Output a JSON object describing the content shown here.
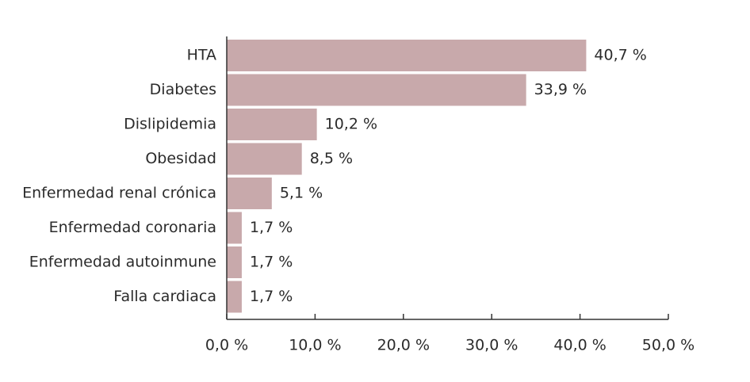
{
  "chart_data": {
    "type": "bar",
    "orientation": "horizontal",
    "categories": [
      "HTA",
      "Diabetes",
      "Dislipidemia",
      "Obesidad",
      "Enfermedad renal crónica",
      "Enfermedad coronaria",
      "Enfermedad autoinmune",
      "Falla cardiaca"
    ],
    "values": [
      40.7,
      33.9,
      10.2,
      8.5,
      5.1,
      1.7,
      1.7,
      1.7
    ],
    "value_labels": [
      "40,7 %",
      "33,9 %",
      "10,2 %",
      "8,5 %",
      "5,1 %",
      "1,7 %",
      "1,7 %",
      "1,7 %"
    ],
    "xlim": [
      0,
      50
    ],
    "x_ticks": [
      0,
      10,
      20,
      30,
      40,
      50
    ],
    "x_tick_labels": [
      "0,0 %",
      "10,0 %",
      "20,0 %",
      "30,0 %",
      "40,0 %",
      "50,0 %"
    ],
    "title": "",
    "xlabel": "",
    "ylabel": "",
    "grid": false,
    "legend": "none",
    "colors": {
      "bar": "#c8a9ab",
      "axis": "#333333",
      "text": "#2b2b2b"
    }
  }
}
